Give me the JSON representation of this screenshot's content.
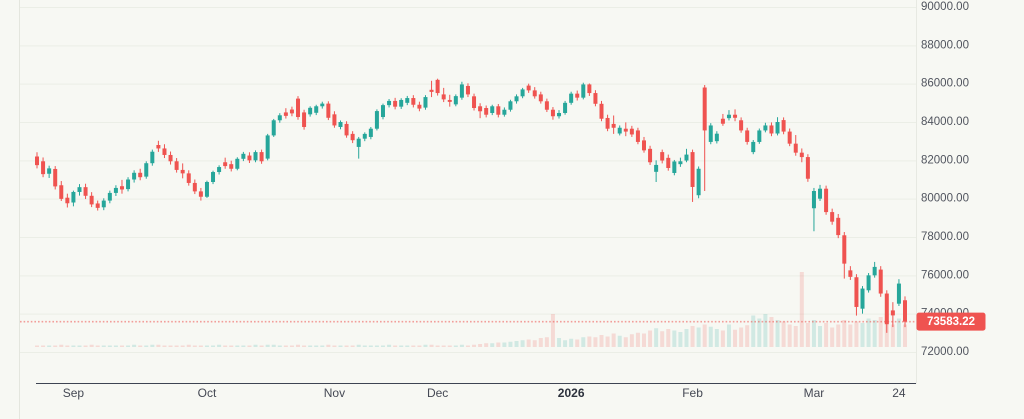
{
  "chart_data": {
    "type": "candlestick",
    "title": "",
    "current_price": {
      "value": 73583.22,
      "label": "73583.22"
    },
    "y_axis": {
      "min": 72000,
      "max": 90000,
      "tick_step": 2000,
      "ticks": [
        {
          "value": 90000,
          "label": "90000.00"
        },
        {
          "value": 88000,
          "label": "88000.00"
        },
        {
          "value": 86000,
          "label": "86000.00"
        },
        {
          "value": 84000,
          "label": "84000.00"
        },
        {
          "value": 82000,
          "label": "82000.00"
        },
        {
          "value": 80000,
          "label": "80000.00"
        },
        {
          "value": 78000,
          "label": "78000.00"
        },
        {
          "value": 76000,
          "label": "76000.00"
        },
        {
          "value": 74000,
          "label": "74000.00"
        },
        {
          "value": 72000,
          "label": "72000.00"
        }
      ]
    },
    "x_axis": {
      "ticks": [
        {
          "label": "Sep",
          "index": 6,
          "bold": false
        },
        {
          "label": "Oct",
          "index": 28,
          "bold": false
        },
        {
          "label": "Nov",
          "index": 49,
          "bold": false
        },
        {
          "label": "Dec",
          "index": 66,
          "bold": false
        },
        {
          "label": "2026",
          "index": 88,
          "bold": true
        },
        {
          "label": "Feb",
          "index": 108,
          "bold": false
        },
        {
          "label": "Mar",
          "index": 128,
          "bold": false
        },
        {
          "label": "24",
          "index": 142,
          "bold": false
        }
      ]
    },
    "colors": {
      "up": "#26a69a",
      "down": "#ef5350",
      "volume_up": "rgba(38,166,154,0.18)",
      "volume_down": "rgba(239,83,80,0.18)",
      "background": "#f7f8f3",
      "grid": "#ebeee6",
      "axis_line": "#3e4452",
      "border": "#e4e6de",
      "tick_text": "#50545e",
      "month_text": "#454954",
      "year_text": "#2c313c",
      "price_tag_bg": "#ef5350",
      "price_tag_text": "#ffffff"
    },
    "candle_format": [
      "open",
      "high",
      "low",
      "close",
      "volume"
    ],
    "candles": [
      [
        82200,
        82420,
        81580,
        81750,
        2
      ],
      [
        81950,
        82150,
        81120,
        81280,
        2
      ],
      [
        81300,
        81720,
        81080,
        81580,
        2
      ],
      [
        81550,
        81700,
        80480,
        80640,
        2
      ],
      [
        80700,
        80920,
        79880,
        79990,
        3
      ],
      [
        80050,
        80260,
        79540,
        79760,
        2
      ],
      [
        79800,
        80420,
        79600,
        80350,
        2
      ],
      [
        80350,
        80760,
        80160,
        80600,
        2
      ],
      [
        80600,
        80780,
        79980,
        80150,
        2
      ],
      [
        80150,
        80340,
        79560,
        79700,
        3
      ],
      [
        79750,
        79900,
        79380,
        79520,
        2
      ],
      [
        79550,
        80020,
        79400,
        79900,
        2
      ],
      [
        79900,
        80420,
        79760,
        80300,
        2
      ],
      [
        80300,
        80700,
        80140,
        80560,
        2
      ],
      [
        80650,
        80980,
        80260,
        80480,
        2
      ],
      [
        80500,
        81120,
        80380,
        81000,
        2
      ],
      [
        81000,
        81480,
        80840,
        81350,
        3
      ],
      [
        81350,
        81560,
        80960,
        81120,
        2
      ],
      [
        81150,
        81950,
        81040,
        81850,
        2
      ],
      [
        81850,
        82560,
        81720,
        82450,
        3
      ],
      [
        82800,
        83020,
        82440,
        82620,
        3
      ],
      [
        82620,
        82840,
        82120,
        82280,
        2
      ],
      [
        82280,
        82460,
        81780,
        81950,
        2
      ],
      [
        81950,
        82120,
        81360,
        81500,
        2
      ],
      [
        81500,
        81840,
        81060,
        81320,
        2
      ],
      [
        81320,
        81480,
        80680,
        80820,
        3
      ],
      [
        80820,
        81000,
        80240,
        80380,
        2
      ],
      [
        80380,
        80560,
        79900,
        80100,
        2
      ],
      [
        80100,
        80940,
        80040,
        80870,
        2
      ],
      [
        80870,
        81460,
        80760,
        81390,
        2
      ],
      [
        81390,
        81740,
        81260,
        81650,
        3
      ],
      [
        81900,
        82140,
        81560,
        81700,
        2
      ],
      [
        81800,
        81980,
        81420,
        81560,
        2
      ],
      [
        81560,
        82160,
        81480,
        82080,
        2
      ],
      [
        82080,
        82440,
        81960,
        82340,
        2
      ],
      [
        82250,
        82420,
        81860,
        82000,
        2
      ],
      [
        82000,
        82520,
        81900,
        82430,
        3
      ],
      [
        82430,
        82560,
        81820,
        81950,
        2
      ],
      [
        82090,
        83380,
        82000,
        83300,
        3
      ],
      [
        83300,
        84160,
        83220,
        84090,
        3
      ],
      [
        84090,
        84460,
        83960,
        84350,
        2
      ],
      [
        84500,
        84720,
        84180,
        84320,
        2
      ],
      [
        84650,
        84800,
        84300,
        84450,
        2
      ],
      [
        85220,
        85350,
        84120,
        84260,
        3
      ],
      [
        84500,
        84640,
        83600,
        83740,
        2
      ],
      [
        84400,
        84820,
        84280,
        84740,
        2
      ],
      [
        84480,
        84900,
        84360,
        84820,
        2
      ],
      [
        84820,
        85060,
        84700,
        84960,
        2
      ],
      [
        84960,
        85080,
        84100,
        84220,
        3
      ],
      [
        84400,
        84560,
        83700,
        83820,
        2
      ],
      [
        83740,
        84080,
        83620,
        84000,
        2
      ],
      [
        83900,
        84040,
        83180,
        83300,
        2
      ],
      [
        83380,
        83520,
        82900,
        83050,
        2
      ],
      [
        82700,
        83220,
        82090,
        83130,
        3
      ],
      [
        83130,
        83460,
        83000,
        83380,
        2
      ],
      [
        83220,
        83740,
        83100,
        83650,
        2
      ],
      [
        83650,
        84660,
        83560,
        84570,
        2
      ],
      [
        84260,
        84960,
        84140,
        84880,
        2
      ],
      [
        84880,
        85200,
        84760,
        85100,
        3
      ],
      [
        85100,
        85260,
        84660,
        84800,
        2
      ],
      [
        84800,
        85240,
        84680,
        85150,
        2
      ],
      [
        85000,
        85360,
        84880,
        85250,
        2
      ],
      [
        85250,
        85400,
        84760,
        84900,
        2
      ],
      [
        84900,
        85060,
        84560,
        84700,
        2
      ],
      [
        84750,
        85400,
        84640,
        85300,
        3
      ],
      [
        85680,
        86150,
        85300,
        85570,
        3
      ],
      [
        86200,
        86260,
        85380,
        85510,
        2
      ],
      [
        85440,
        85780,
        85040,
        85180,
        2
      ],
      [
        85150,
        85420,
        84800,
        85050,
        2
      ],
      [
        84920,
        85440,
        84820,
        85350,
        2
      ],
      [
        85270,
        86100,
        85160,
        85960,
        3
      ],
      [
        85880,
        86020,
        85300,
        85440,
        2
      ],
      [
        85340,
        85480,
        84600,
        84730,
        3
      ],
      [
        84820,
        84980,
        84200,
        84560,
        4
      ],
      [
        84730,
        84860,
        84240,
        84380,
        5
      ],
      [
        84470,
        84900,
        84360,
        84820,
        5
      ],
      [
        84820,
        84940,
        84240,
        84380,
        6
      ],
      [
        84380,
        84760,
        84280,
        84640,
        6
      ],
      [
        84640,
        85160,
        84540,
        85080,
        7
      ],
      [
        85080,
        85440,
        84960,
        85340,
        8
      ],
      [
        85340,
        85780,
        85240,
        85700,
        9
      ],
      [
        85900,
        86000,
        85520,
        85650,
        10
      ],
      [
        85650,
        85820,
        85220,
        85340,
        9
      ],
      [
        85440,
        85580,
        84960,
        85080,
        12
      ],
      [
        85080,
        85220,
        84520,
        84640,
        13
      ],
      [
        84640,
        84780,
        84120,
        84300,
        44
      ],
      [
        84300,
        84620,
        84180,
        84470,
        12
      ],
      [
        84470,
        85100,
        84380,
        85000,
        9
      ],
      [
        85000,
        85580,
        84900,
        85480,
        11
      ],
      [
        85480,
        85640,
        85120,
        85270,
        10
      ],
      [
        85270,
        86050,
        85180,
        85960,
        13
      ],
      [
        85960,
        86010,
        85360,
        85510,
        14
      ],
      [
        85510,
        85660,
        84820,
        84950,
        13
      ],
      [
        84950,
        85100,
        84040,
        84170,
        16
      ],
      [
        84210,
        84380,
        83520,
        83650,
        14
      ],
      [
        83900,
        84340,
        83380,
        83700,
        18
      ],
      [
        83400,
        83820,
        83300,
        83700,
        15
      ],
      [
        83650,
        83980,
        83260,
        83500,
        13
      ],
      [
        83650,
        83800,
        83220,
        83350,
        17
      ],
      [
        83560,
        83700,
        82840,
        82960,
        19
      ],
      [
        83040,
        83220,
        82400,
        82520,
        18
      ],
      [
        82600,
        82760,
        81760,
        81900,
        22
      ],
      [
        81400,
        82000,
        80870,
        81760,
        25
      ],
      [
        82430,
        82560,
        81840,
        81990,
        21
      ],
      [
        82130,
        82300,
        81460,
        81600,
        24
      ],
      [
        81340,
        82020,
        81220,
        81940,
        22
      ],
      [
        81800,
        82140,
        81660,
        81950,
        20
      ],
      [
        81990,
        82600,
        81900,
        82300,
        24
      ],
      [
        82430,
        82560,
        79830,
        80610,
        28
      ],
      [
        80180,
        81680,
        80020,
        81560,
        26
      ],
      [
        85800,
        85930,
        80400,
        83560,
        30
      ],
      [
        82960,
        83940,
        82840,
        83820,
        27
      ],
      [
        83000,
        83520,
        82880,
        83390,
        24
      ],
      [
        84170,
        84420,
        83800,
        83910,
        22
      ],
      [
        84200,
        84620,
        84080,
        84380,
        30
      ],
      [
        84380,
        84660,
        84040,
        84220,
        23
      ],
      [
        84090,
        84240,
        83440,
        83560,
        26
      ],
      [
        83560,
        83700,
        82820,
        82960,
        29
      ],
      [
        82430,
        83060,
        82320,
        82960,
        42
      ],
      [
        82960,
        83660,
        82860,
        83560,
        38
      ],
      [
        83560,
        83960,
        83460,
        83820,
        44
      ],
      [
        83820,
        83980,
        83260,
        83400,
        40
      ],
      [
        83400,
        84250,
        83300,
        84000,
        36
      ],
      [
        84100,
        84240,
        83360,
        83500,
        34
      ],
      [
        83500,
        83660,
        82740,
        82870,
        30
      ],
      [
        82870,
        83320,
        82240,
        82400,
        28
      ],
      [
        82400,
        82620,
        81900,
        82170,
        100
      ],
      [
        82170,
        82320,
        80880,
        81040,
        32
      ],
      [
        79500,
        80560,
        78300,
        80400,
        36
      ],
      [
        80000,
        80720,
        79880,
        80520,
        28
      ],
      [
        80520,
        80680,
        79160,
        79300,
        32
      ],
      [
        79300,
        79480,
        78640,
        78800,
        26
      ],
      [
        79000,
        79200,
        77940,
        78100,
        30
      ],
      [
        78090,
        78260,
        75830,
        76610,
        36
      ],
      [
        76260,
        76480,
        75760,
        75920,
        30
      ],
      [
        75900,
        76060,
        73900,
        74350,
        34
      ],
      [
        74260,
        75440,
        74000,
        75310,
        32
      ],
      [
        75220,
        76120,
        75100,
        76000,
        38
      ],
      [
        76000,
        76700,
        75880,
        76440,
        36
      ],
      [
        76300,
        76480,
        74880,
        75050,
        40
      ],
      [
        75050,
        75220,
        73000,
        73450,
        44
      ],
      [
        74170,
        74600,
        73300,
        73910,
        30
      ],
      [
        74520,
        75800,
        74400,
        75570,
        38
      ],
      [
        74700,
        74900,
        73300,
        73583.22,
        30
      ]
    ]
  }
}
